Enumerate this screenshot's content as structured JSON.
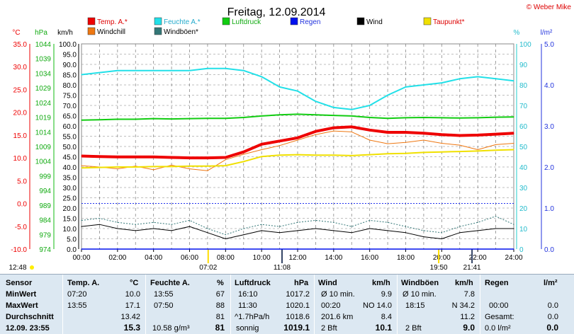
{
  "title": "Freitag, 12.09.2014",
  "credit": "© Weber Mike",
  "colors": {
    "temp": "#ee0000",
    "feuchte": "#22e0e8",
    "luftdruck": "#11cc11",
    "regen": "#0011ee",
    "wind": "#000000",
    "taupunkt": "#f0e000",
    "windchill": "#ee7711",
    "windboeen": "#337777"
  },
  "axis_units": {
    "temp": "°C",
    "pressure": "hPa",
    "wind": "km/h",
    "humidity": "%",
    "rain": "l/m²"
  },
  "axis_ticks": {
    "temp": [
      "35.0",
      "30.0",
      "25.0",
      "20.0",
      "15.0",
      "10.0",
      "5.0",
      "0.0",
      "-5.0",
      "-10.0"
    ],
    "pressure": [
      "1044",
      "1039",
      "1034",
      "1029",
      "1024",
      "1019",
      "1014",
      "1009",
      "1004",
      "999",
      "994",
      "989",
      "984",
      "979",
      "974"
    ],
    "wind": [
      "100.0",
      "95.0",
      "90.0",
      "85.0",
      "80.0",
      "75.0",
      "70.0",
      "65.0",
      "60.0",
      "55.0",
      "50.0",
      "45.0",
      "40.0",
      "35.0",
      "30.0",
      "25.0",
      "20.0",
      "15.0",
      "10.0",
      "5.0",
      "0.0"
    ],
    "humidity": [
      "100",
      "90",
      "80",
      "70",
      "60",
      "50",
      "40",
      "30",
      "20",
      "10",
      "0"
    ],
    "rain": [
      "5.0",
      "4.0",
      "3.0",
      "2.0",
      "1.0",
      "0.0"
    ],
    "time": [
      "00:00",
      "02:00",
      "04:00",
      "06:00",
      "08:00",
      "10:00",
      "12:00",
      "14:00",
      "16:00",
      "18:00",
      "20:00",
      "22:00",
      "24:00"
    ]
  },
  "legend": [
    {
      "key": "temp",
      "label": "Temp. A.*"
    },
    {
      "key": "feuchte",
      "label": "Feuchte A.*"
    },
    {
      "key": "luftdruck",
      "label": "Luftdruck"
    },
    {
      "key": "regen",
      "label": "Regen"
    },
    {
      "key": "wind",
      "label": "Wind"
    },
    {
      "key": "taupunkt",
      "label": "Taupunkt*"
    },
    {
      "key": "windchill",
      "label": "Windchill"
    },
    {
      "key": "windboeen",
      "label": "Windböen*"
    }
  ],
  "sun_times": {
    "markers": [
      "12:48",
      "07:02",
      "11:08",
      "19:50",
      "21:41"
    ]
  },
  "chart_data": {
    "type": "line",
    "xlabel": "",
    "x": [
      "00:00",
      "01:00",
      "02:00",
      "03:00",
      "04:00",
      "05:00",
      "06:00",
      "07:00",
      "08:00",
      "09:00",
      "10:00",
      "11:00",
      "12:00",
      "13:00",
      "14:00",
      "15:00",
      "16:00",
      "17:00",
      "18:00",
      "19:00",
      "20:00",
      "21:00",
      "22:00",
      "23:00",
      "24:00"
    ],
    "grid": true,
    "series": [
      {
        "name": "Temp. A.*",
        "unit": "°C",
        "values": [
          10.4,
          10.3,
          10.2,
          10.2,
          10.2,
          10.1,
          10.0,
          10.0,
          10.1,
          11.3,
          13.0,
          13.7,
          14.4,
          15.8,
          16.6,
          16.8,
          16.1,
          15.6,
          15.6,
          15.4,
          15.1,
          14.9,
          15.0,
          15.2,
          15.4
        ]
      },
      {
        "name": "Feuchte A.*",
        "unit": "%",
        "values": [
          85,
          86,
          87,
          87,
          87,
          87,
          87,
          88,
          88,
          87,
          84,
          79,
          77,
          72,
          69,
          68,
          70,
          75,
          79,
          80,
          81,
          83,
          84,
          83,
          82
        ]
      },
      {
        "name": "Luftdruck",
        "unit": "hPa",
        "values": [
          1018.0,
          1018.1,
          1018.3,
          1018.3,
          1018.5,
          1018.4,
          1018.5,
          1018.6,
          1018.6,
          1018.9,
          1019.4,
          1019.8,
          1020.0,
          1019.8,
          1019.6,
          1019.4,
          1018.9,
          1018.6,
          1018.8,
          1018.9,
          1018.8,
          1018.7,
          1018.8,
          1019.0,
          1019.1
        ]
      },
      {
        "name": "Regen",
        "unit": "l/m²",
        "values": [
          0,
          0,
          0,
          0,
          0,
          0,
          0,
          0,
          0,
          0,
          0,
          0,
          0,
          0,
          0,
          0,
          0,
          0,
          0,
          0,
          0,
          0,
          0,
          0,
          0
        ]
      },
      {
        "name": "Wind",
        "unit": "km/h",
        "values": [
          11,
          12,
          10,
          9,
          10,
          9,
          11,
          8,
          5,
          7,
          9,
          8,
          9,
          10,
          9,
          8,
          10,
          9,
          8,
          6,
          5,
          8,
          9,
          10,
          10
        ]
      },
      {
        "name": "Taupunkt*",
        "unit": "°C",
        "values": [
          7.8,
          7.9,
          8.0,
          8.0,
          8.1,
          8.1,
          8.2,
          8.2,
          8.3,
          9.2,
          10.3,
          10.6,
          10.7,
          10.6,
          10.6,
          10.5,
          10.7,
          10.9,
          11.0,
          11.2,
          11.3,
          11.4,
          11.5,
          11.7,
          11.8
        ]
      },
      {
        "name": "Windchill",
        "unit": "°C",
        "values": [
          8.3,
          8.0,
          7.6,
          8.2,
          7.4,
          8.4,
          7.6,
          7.2,
          9.6,
          10.8,
          11.8,
          12.7,
          13.9,
          15.1,
          15.9,
          15.7,
          13.9,
          13.1,
          13.4,
          13.9,
          13.2,
          12.8,
          11.8,
          12.9,
          13.2
        ]
      },
      {
        "name": "Windböen*",
        "unit": "km/h",
        "values": [
          14,
          15,
          13,
          12,
          13,
          12,
          14,
          10,
          7,
          10,
          12,
          11,
          13,
          14,
          13,
          11,
          14,
          13,
          11,
          9,
          8,
          11,
          13,
          16,
          12
        ]
      }
    ],
    "axes": {
      "temp": {
        "label": "°C",
        "ylim": [
          -10,
          35
        ]
      },
      "pressure": {
        "label": "hPa",
        "ylim": [
          974,
          1044
        ]
      },
      "wind": {
        "label": "km/h",
        "ylim": [
          0,
          100
        ]
      },
      "humidity": {
        "label": "%",
        "ylim": [
          0,
          100
        ]
      },
      "rain": {
        "label": "l/m²",
        "ylim": [
          0,
          5
        ]
      }
    }
  },
  "table": {
    "sensor_col": {
      "header": "Sensor",
      "min": "MinWert",
      "max": "MaxWert",
      "avg": "Durchschnitt",
      "date": "12.09. 23:55"
    },
    "temp": {
      "header": "Temp. A.",
      "unit": "°C",
      "min_time": "07:20",
      "min_val": "10.0",
      "max_time": "13:55",
      "max_val": "17.1",
      "avg_val": "13.42",
      "current": "15.3"
    },
    "feuchte": {
      "header": "Feuchte A.",
      "unit": "%",
      "min_time": "13:55",
      "min_val": "67",
      "max_time": "07:50",
      "max_val": "88",
      "avg_val": "81",
      "extra": "10.58 g/m³",
      "current": "81"
    },
    "luftdruck": {
      "header": "Luftdruck",
      "unit": "hPa",
      "min_time": "16:10",
      "min_val": "1017.2",
      "max_time": "11:30",
      "max_val": "1020.1",
      "avg_label": "^1.7hPa/h",
      "avg_val": "1018.6",
      "extra": "sonnig",
      "current": "1019.1"
    },
    "wind": {
      "header": "Wind",
      "unit": "km/h",
      "min_label": "Ø 10 min.",
      "min_val": "9.9",
      "max_time": "00:20",
      "max_dir": "NO 14.0",
      "avg_label": "201.6 km",
      "avg_val": "8.4",
      "extra": "2 Bft",
      "current": "10.1"
    },
    "windboeen": {
      "header": "Windböen",
      "unit": "km/h",
      "min_label": "Ø 10 min.",
      "min_val": "7.8",
      "max_time": "18:15",
      "max_dir": "N 34.2",
      "avg_val": "11.2",
      "extra": "2 Bft",
      "current": "9.0"
    },
    "regen": {
      "header": "Regen",
      "unit": "l/m²",
      "max_time": "00:00",
      "max_val": "0.0",
      "avg_label": "Gesamt:",
      "avg_val": "0.0",
      "extra": "0.0 l/m²",
      "current": "0.0"
    }
  }
}
